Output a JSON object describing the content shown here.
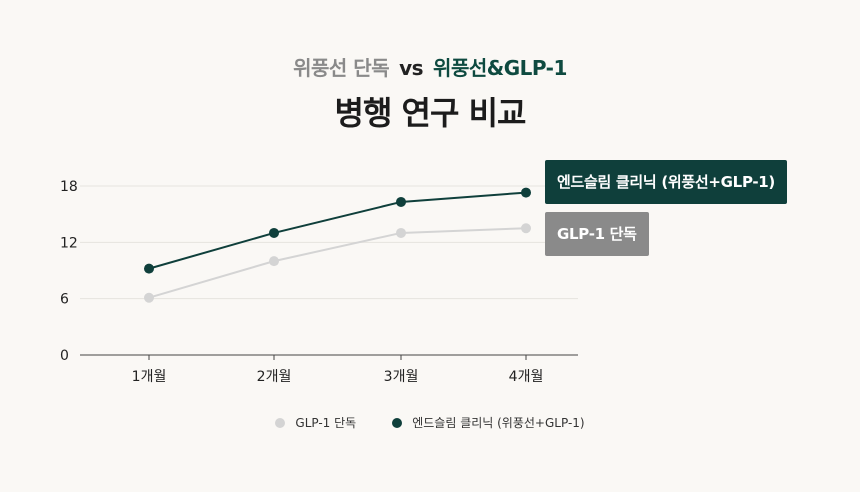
{
  "header": {
    "subtitle_left": "위풍선 단독",
    "subtitle_vs": "vs",
    "subtitle_right": "위풍선&GLP-1",
    "title": "병행 연구 비교"
  },
  "colors": {
    "series_a": "#0f3f3b",
    "series_b": "#d4d4d4",
    "tag_b": "#8a8a8a"
  },
  "chart_data": {
    "type": "line",
    "x": [
      "1개월",
      "2개월",
      "3개월",
      "4개월"
    ],
    "yticks": [
      0,
      6,
      12,
      18
    ],
    "ylim": [
      0,
      18
    ],
    "grid": true,
    "series": [
      {
        "name": "GLP-1 단독",
        "values": [
          6.1,
          10.0,
          13.0,
          13.5
        ]
      },
      {
        "name": "엔드슬림 클리닉 (위풍선+GLP-1)",
        "values": [
          9.2,
          13.0,
          16.3,
          17.3
        ]
      }
    ]
  },
  "tags": {
    "series_a": "엔드슬림 클리닉 (위풍선+GLP-1)",
    "series_b": "GLP-1 단독"
  },
  "legend": {
    "series_b": "GLP-1 단독",
    "series_a": "엔드슬림 클리닉 (위풍선+GLP-1)"
  }
}
